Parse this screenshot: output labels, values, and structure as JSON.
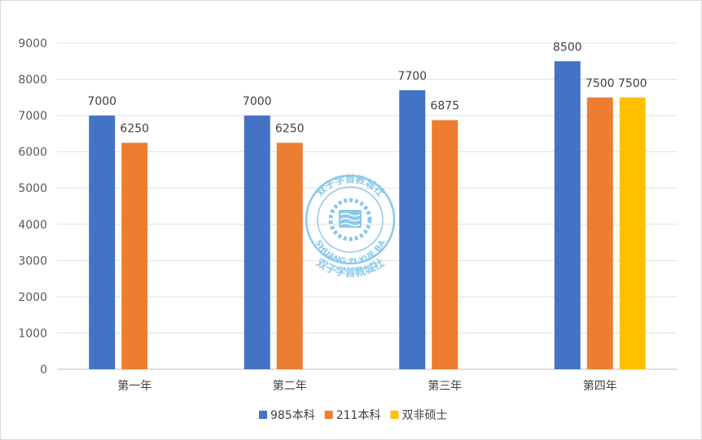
{
  "chart_data": {
    "type": "bar",
    "categories": [
      "第一年",
      "第二年",
      "第三年",
      "第四年"
    ],
    "series": [
      {
        "name": "985本科",
        "color": "#4472c4",
        "values": [
          7000,
          7000,
          7700,
          8500
        ]
      },
      {
        "name": "211本科",
        "color": "#ed7d31",
        "values": [
          6250,
          6250,
          6875,
          7500
        ]
      },
      {
        "name": "双非硕士",
        "color": "#ffc000",
        "values": [
          null,
          null,
          null,
          7500
        ]
      }
    ],
    "yticks": [
      0,
      1000,
      2000,
      3000,
      4000,
      5000,
      6000,
      7000,
      8000,
      9000
    ],
    "ylim": [
      0,
      9000
    ],
    "grid": true,
    "legend": "bottom",
    "data_labels": true
  },
  "watermark": {
    "top_text": "双子学首教城社",
    "bottom_text": "双子学首教城社",
    "ring_text": "SHUANG ZI XUE BA",
    "color": "#7fc4e8"
  }
}
